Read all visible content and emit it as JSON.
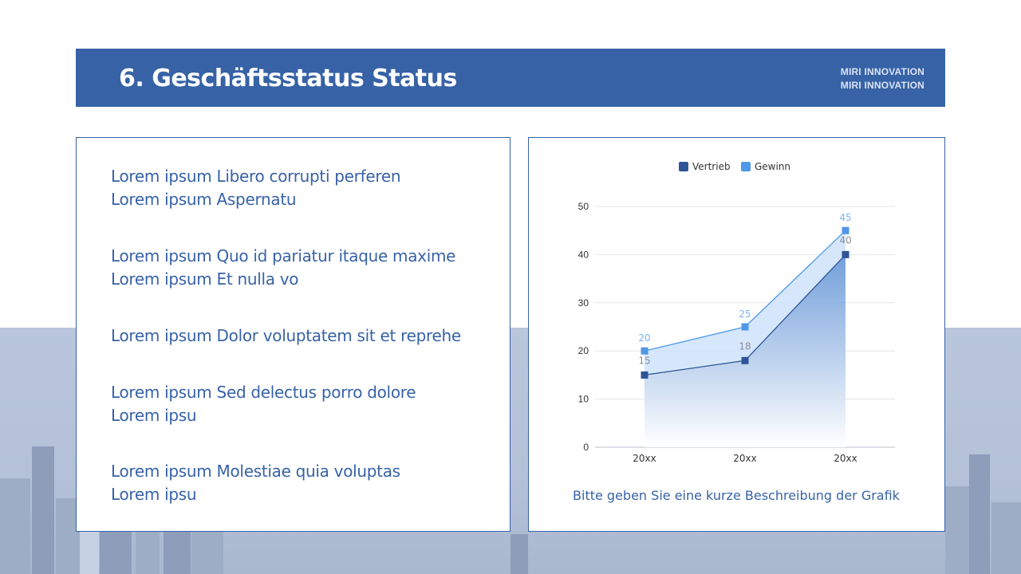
{
  "header": {
    "title": "6. Geschäftsstatus Status",
    "brand_line1": "MIRI INNOVATION",
    "brand_line2": "MIRI INNOVATION"
  },
  "bullets": [
    [
      "Lorem ipsum Libero corrupti perferen",
      "Lorem ipsum Aspernatu"
    ],
    [
      "Lorem ipsum Quo id pariatur itaque maxime",
      "Lorem ipsum Et nulla vo"
    ],
    [
      "Lorem ipsum Dolor voluptatem sit et reprehe"
    ],
    [
      "Lorem ipsum Sed delectus porro dolore",
      "Lorem ipsu"
    ],
    [
      "Lorem ipsum Molestiae quia voluptas",
      "Lorem ipsu"
    ]
  ],
  "chart_data": {
    "type": "area",
    "categories": [
      "20xx",
      "20xx",
      "20xx"
    ],
    "series": [
      {
        "name": "Vertrieb",
        "values": [
          15,
          18,
          40
        ],
        "color": "#2d5496"
      },
      {
        "name": "Gewinn",
        "values": [
          20,
          25,
          45
        ],
        "color": "#4f97e8"
      }
    ],
    "yticks": [
      0,
      10,
      20,
      30,
      40,
      50
    ],
    "ylim": [
      0,
      50
    ],
    "legend": "top-center",
    "grid": true,
    "caption": "Bitte geben Sie eine kurze Beschreibung der Grafik"
  },
  "colors": {
    "accent": "#3762a6",
    "series_dark": "#2d5496",
    "series_light": "#4f97e8"
  }
}
